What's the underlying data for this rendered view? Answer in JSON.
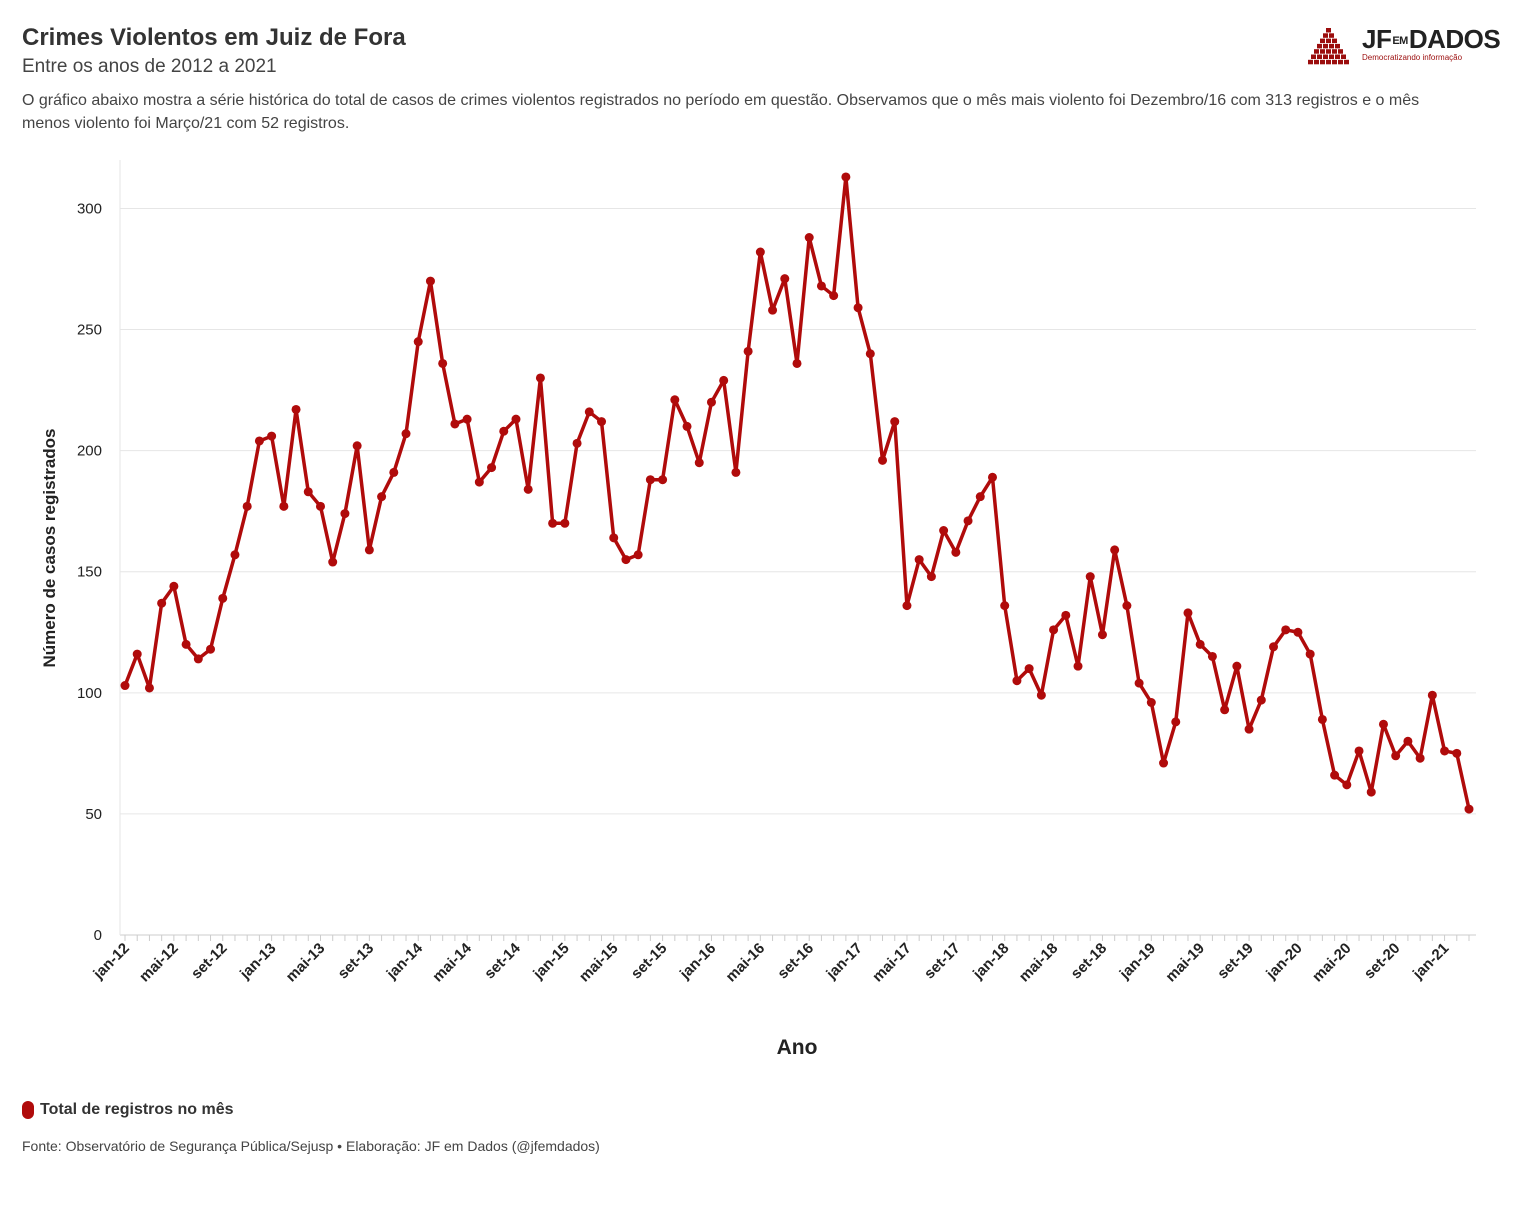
{
  "header": {
    "title": "Crimes Violentos em Juiz de Fora",
    "subtitle": "Entre os anos de 2012 a 2021",
    "description": "O gráfico abaixo mostra a série histórica do total de casos de crimes violentos registrados no período em questão. Observamos que o mês mais violento foi Dezembro/16 com 313 registros e o mês menos violento foi Março/21 com 52 registros."
  },
  "logo": {
    "name_left": "JF",
    "name_small": "EM",
    "name_right": "DADOS",
    "tagline": "Democratizando informação",
    "color": "#9b0d0d"
  },
  "legend": {
    "label": "Total de registros no mês"
  },
  "source": "Fonte: Observatório de Segurança Pública/Sejusp • Elaboração: JF em Dados (@jfemdados)",
  "chart_data": {
    "type": "line",
    "title": "Crimes Violentos em Juiz de Fora",
    "subtitle": "Entre os anos de 2012 a 2021",
    "xlabel": "Ano",
    "ylabel": "Número de casos registrados",
    "ylim": [
      0,
      320
    ],
    "yticks": [
      0,
      50,
      100,
      150,
      200,
      250,
      300
    ],
    "grid": true,
    "legend_position": "bottom-left",
    "color": "#b00b0b",
    "x_tick_labels": [
      "jan-12",
      "mai-12",
      "set-12",
      "jan-13",
      "mai-13",
      "set-13",
      "jan-14",
      "mai-14",
      "set-14",
      "jan-15",
      "mai-15",
      "set-15",
      "jan-16",
      "mai-16",
      "set-16",
      "jan-17",
      "mai-17",
      "set-17",
      "jan-18",
      "mai-18",
      "set-18",
      "jan-19",
      "mai-19",
      "set-19",
      "jan-20",
      "mai-20",
      "set-20",
      "jan-21"
    ],
    "x_tick_every_months": 4,
    "start_month": "jan-12",
    "series": [
      {
        "name": "Total de registros no mês",
        "values": [
          103,
          116,
          102,
          137,
          144,
          120,
          114,
          118,
          139,
          157,
          177,
          204,
          206,
          177,
          217,
          183,
          177,
          154,
          174,
          202,
          159,
          181,
          191,
          207,
          245,
          270,
          236,
          211,
          213,
          187,
          193,
          208,
          213,
          184,
          230,
          170,
          170,
          203,
          216,
          212,
          164,
          155,
          157,
          188,
          188,
          221,
          210,
          195,
          220,
          229,
          191,
          241,
          282,
          258,
          271,
          236,
          288,
          268,
          264,
          313,
          259,
          240,
          196,
          212,
          136,
          155,
          148,
          167,
          158,
          171,
          181,
          189,
          136,
          105,
          110,
          99,
          126,
          132,
          111,
          148,
          124,
          159,
          136,
          104,
          96,
          71,
          88,
          133,
          120,
          115,
          93,
          111,
          85,
          97,
          119,
          126,
          125,
          116,
          89,
          66,
          62,
          76,
          59,
          87,
          74,
          80,
          73,
          99,
          76,
          75,
          52
        ]
      }
    ]
  }
}
